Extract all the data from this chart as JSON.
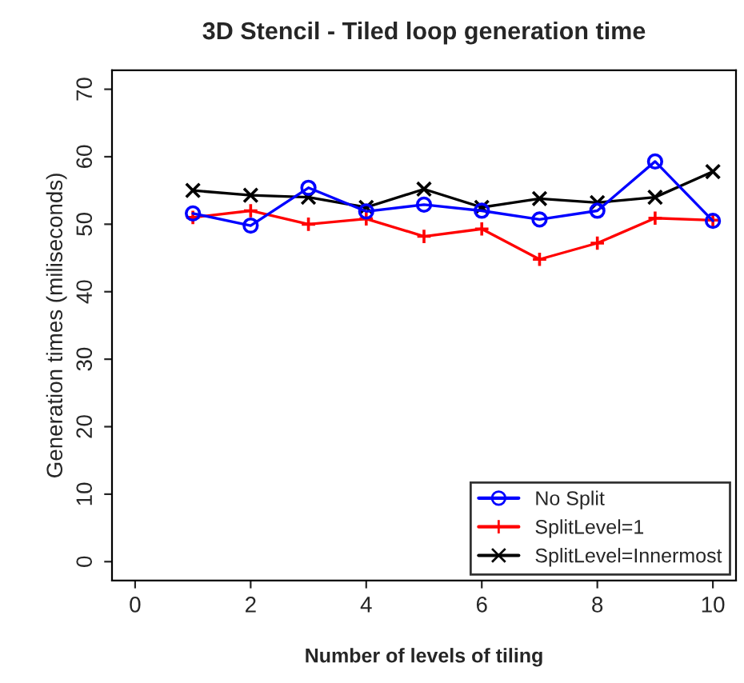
{
  "chart_data": {
    "type": "line",
    "title": "3D Stencil - Tiled loop generation time",
    "xlabel": "Number of levels of tiling",
    "ylabel": "Generation times (miliseconds)",
    "x": [
      1,
      2,
      3,
      4,
      5,
      6,
      7,
      8,
      9,
      10
    ],
    "series": [
      {
        "name": "No Split",
        "color": "#0000ff",
        "marker": "circle",
        "values": [
          51.6,
          49.8,
          55.4,
          51.9,
          52.9,
          52.0,
          50.7,
          52.0,
          59.3,
          50.5
        ]
      },
      {
        "name": "SplitLevel=1",
        "color": "#ff0000",
        "marker": "plus",
        "values": [
          51.0,
          52.0,
          50.0,
          50.8,
          48.2,
          49.3,
          44.8,
          47.2,
          50.9,
          50.6
        ]
      },
      {
        "name": "SplitLevel=Innermost",
        "color": "#000000",
        "marker": "cross",
        "values": [
          55.0,
          54.3,
          54.0,
          52.5,
          55.2,
          52.5,
          53.8,
          53.2,
          54.0,
          57.8
        ]
      }
    ],
    "xlim": [
      -0.4,
      10.4
    ],
    "ylim": [
      -2.8,
      72.8
    ],
    "xticks": [
      0,
      2,
      4,
      6,
      8,
      10
    ],
    "yticks": [
      0,
      10,
      20,
      30,
      40,
      50,
      60,
      70
    ],
    "grid": false,
    "legend": "bottom right"
  }
}
